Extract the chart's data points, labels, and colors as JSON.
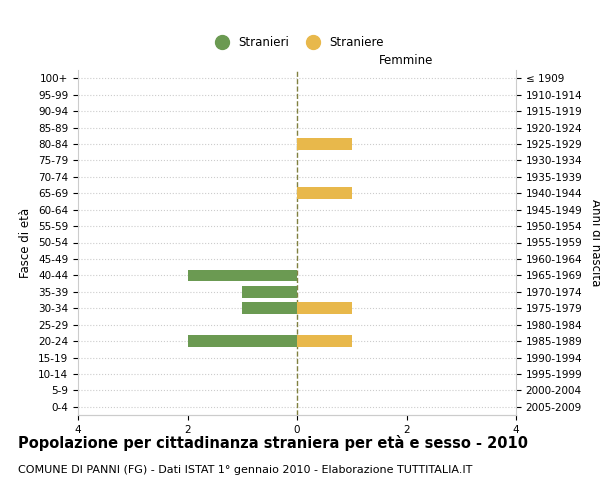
{
  "age_groups": [
    "100+",
    "95-99",
    "90-94",
    "85-89",
    "80-84",
    "75-79",
    "70-74",
    "65-69",
    "60-64",
    "55-59",
    "50-54",
    "45-49",
    "40-44",
    "35-39",
    "30-34",
    "25-29",
    "20-24",
    "15-19",
    "10-14",
    "5-9",
    "0-4"
  ],
  "birth_years": [
    "≤ 1909",
    "1910-1914",
    "1915-1919",
    "1920-1924",
    "1925-1929",
    "1930-1934",
    "1935-1939",
    "1940-1944",
    "1945-1949",
    "1950-1954",
    "1955-1959",
    "1960-1964",
    "1965-1969",
    "1970-1974",
    "1975-1979",
    "1980-1984",
    "1985-1989",
    "1990-1994",
    "1995-1999",
    "2000-2004",
    "2005-2009"
  ],
  "males": [
    0,
    0,
    0,
    0,
    0,
    0,
    0,
    0,
    0,
    0,
    0,
    0,
    -2,
    -1,
    -1,
    0,
    -2,
    0,
    0,
    0,
    0
  ],
  "females": [
    0,
    0,
    0,
    0,
    1,
    0,
    0,
    1,
    0,
    0,
    0,
    0,
    0,
    0,
    1,
    0,
    1,
    0,
    0,
    0,
    0
  ],
  "male_color": "#6b9a52",
  "female_color": "#e8b84b",
  "xlim": [
    -4,
    4
  ],
  "xticks": [
    -4,
    -2,
    0,
    2,
    4
  ],
  "xticklabels": [
    "4",
    "2",
    "0",
    "2",
    "4"
  ],
  "title": "Popolazione per cittadinanza straniera per età e sesso - 2010",
  "subtitle": "COMUNE DI PANNI (FG) - Dati ISTAT 1° gennaio 2010 - Elaborazione TUTTITALIA.IT",
  "ylabel_left": "Fasce di età",
  "ylabel_right": "Anni di nascita",
  "label_femmine": "Femmine",
  "legend_stranieri": "Stranieri",
  "legend_straniere": "Straniere",
  "bar_height": 0.7,
  "background_color": "#ffffff",
  "grid_color": "#cccccc",
  "center_line_color": "#808040",
  "title_fontsize": 10.5,
  "subtitle_fontsize": 8,
  "tick_fontsize": 7.5,
  "label_fontsize": 8.5,
  "header_fontsize": 8.5,
  "spine_color": "#cccccc"
}
